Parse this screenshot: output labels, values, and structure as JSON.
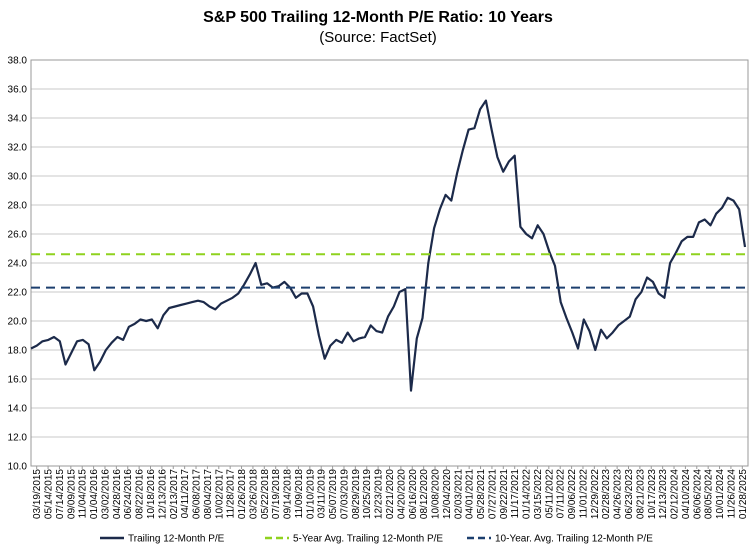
{
  "chart_data": {
    "type": "line",
    "title": "S&P 500 Trailing 12-Month P/E Ratio: 10 Years",
    "subtitle": "(Source: FactSet)",
    "xlabel": "",
    "ylabel": "",
    "ylim": [
      10.0,
      38.0
    ],
    "y_ticks": [
      "10.0",
      "12.0",
      "14.0",
      "16.0",
      "18.0",
      "20.0",
      "22.0",
      "24.0",
      "26.0",
      "28.0",
      "30.0",
      "32.0",
      "34.0",
      "36.0",
      "38.0"
    ],
    "x_tick_labels": [
      "03/19/2015",
      "05/14/2015",
      "07/14/2015",
      "09/09/2015",
      "11/04/2015",
      "01/04/2016",
      "03/02/2016",
      "04/28/2016",
      "06/24/2016",
      "08/22/2016",
      "10/18/2016",
      "12/13/2016",
      "02/13/2017",
      "04/11/2017",
      "06/08/2017",
      "08/04/2017",
      "10/02/2017",
      "11/28/2017",
      "01/26/2018",
      "03/26/2018",
      "05/22/2018",
      "07/19/2018",
      "09/14/2018",
      "11/09/2018",
      "01/10/2019",
      "03/11/2019",
      "05/07/2019",
      "07/03/2019",
      "08/29/2019",
      "10/25/2019",
      "12/23/2019",
      "02/21/2020",
      "04/20/2020",
      "06/16/2020",
      "08/12/2020",
      "10/08/2020",
      "12/04/2020",
      "02/03/2021",
      "04/01/2021",
      "05/28/2021",
      "07/27/2021",
      "09/22/2021",
      "11/17/2021",
      "01/14/2022",
      "03/15/2022",
      "05/11/2022",
      "07/11/2022",
      "09/06/2022",
      "11/01/2022",
      "12/29/2022",
      "02/28/2023",
      "04/26/2023",
      "06/23/2023",
      "08/21/2023",
      "10/17/2023",
      "12/13/2023",
      "02/12/2024",
      "04/10/2024",
      "06/06/2024",
      "08/05/2024",
      "10/01/2024",
      "11/26/2024",
      "01/28/2025"
    ],
    "grid": true,
    "legend_position": "bottom",
    "series": [
      {
        "name": "Trailing 12-Month P/E",
        "style": "solid",
        "color": "#1c2a4a",
        "values": [
          18.1,
          18.3,
          18.6,
          18.7,
          18.9,
          18.6,
          17.0,
          17.8,
          18.6,
          18.7,
          18.4,
          16.6,
          17.2,
          18.0,
          18.5,
          18.9,
          18.7,
          19.6,
          19.8,
          20.1,
          20.0,
          20.1,
          19.5,
          20.4,
          20.9,
          21.0,
          21.1,
          21.2,
          21.3,
          21.4,
          21.3,
          21.0,
          20.8,
          21.2,
          21.4,
          21.6,
          21.9,
          22.5,
          23.2,
          24.0,
          22.5,
          22.6,
          22.3,
          22.4,
          22.7,
          22.3,
          21.6,
          21.9,
          21.9,
          21.0,
          19.0,
          17.4,
          18.3,
          18.7,
          18.5,
          19.2,
          18.6,
          18.8,
          18.9,
          19.7,
          19.3,
          19.2,
          20.3,
          21.0,
          22.0,
          22.2,
          15.2,
          18.8,
          20.2,
          24.0,
          26.4,
          27.7,
          28.7,
          28.3,
          30.2,
          31.8,
          33.2,
          33.3,
          34.6,
          35.2,
          33.2,
          31.3,
          30.3,
          31.0,
          31.4,
          26.5,
          26.0,
          25.7,
          26.6,
          26.0,
          24.8,
          23.8,
          21.3,
          20.2,
          19.2,
          18.1,
          20.1,
          19.3,
          18.0,
          19.4,
          18.8,
          19.2,
          19.7,
          20.0,
          20.3,
          21.5,
          22.0,
          23.0,
          22.7,
          21.9,
          21.6,
          24.0,
          24.7,
          25.5,
          25.8,
          25.8,
          26.8,
          27.0,
          26.6,
          27.4,
          27.8,
          28.5,
          28.3,
          27.7,
          25.1
        ]
      },
      {
        "name": "5-Year Avg. Trailing 12-Month P/E",
        "style": "dashed",
        "color": "#8fd21e",
        "values": [
          24.6
        ]
      },
      {
        "name": "10-Year. Avg. Trailing 12-Month P/E",
        "style": "dashed",
        "color": "#1c3f6e",
        "values": [
          22.3
        ]
      }
    ]
  }
}
